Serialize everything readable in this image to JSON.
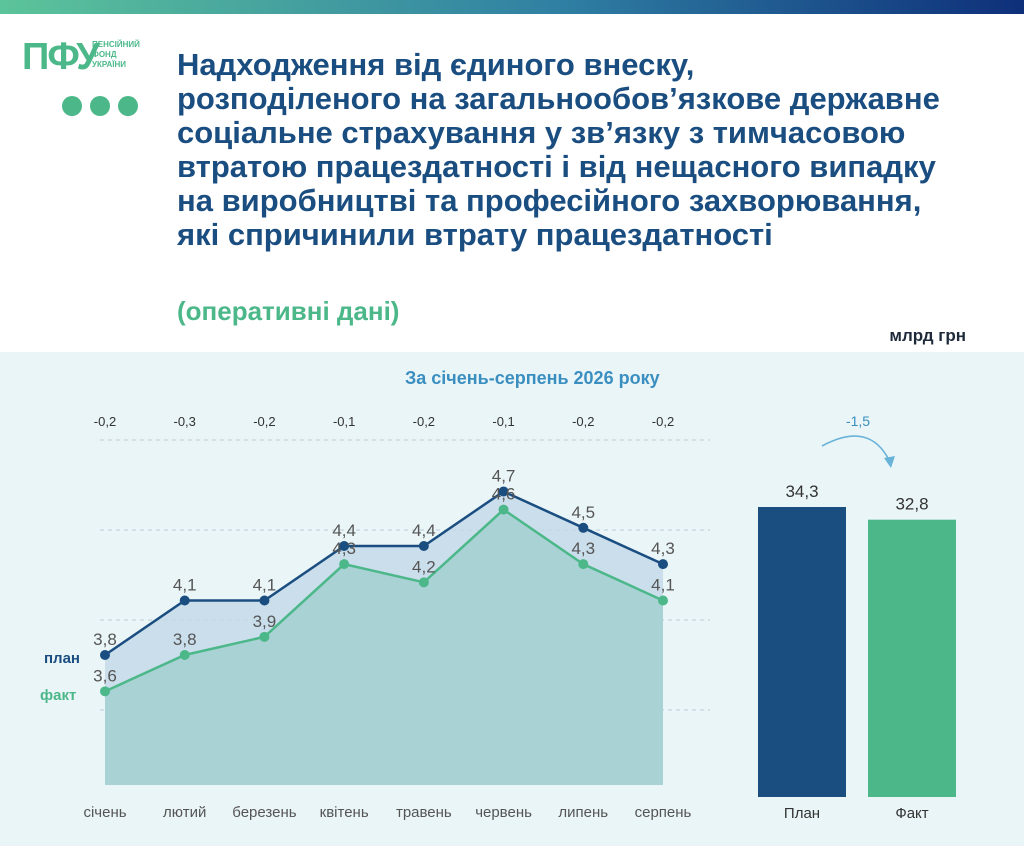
{
  "logo": {
    "mark": "ПФУ",
    "lines": [
      "ПЕНСІЙНИЙ",
      "ФОНД",
      "УКРАЇНИ"
    ]
  },
  "title_lines": [
    "Надходження від єдиного внеску,",
    "розподіленого на загальнообов’язкове державне",
    "соціальне страхування у зв’язку з тимчасовою",
    "втратою працездатності і від нещасного випадку",
    "на виробництві та професійного захворювання,",
    "які спричинили втрату працездатності"
  ],
  "subtitle": "(оперативні дані)",
  "unit": "млрд грн",
  "colors": {
    "plan": "#1a4d80",
    "fact": "#4cb88a",
    "title": "#1a4d80",
    "accent": "#3a8fc0"
  },
  "chart_data": [
    {
      "type": "area",
      "title": "За січень-серпень 2026 року",
      "categories": [
        "січень",
        "лютий",
        "березень",
        "квітень",
        "травень",
        "червень",
        "липень",
        "серпень"
      ],
      "series": [
        {
          "name": "план",
          "values": [
            3.8,
            4.1,
            4.1,
            4.4,
            4.4,
            4.7,
            4.5,
            4.3
          ],
          "labels": [
            "3,8",
            "4,1",
            "4,1",
            "4,4",
            "4,4",
            "4,7",
            "4,5",
            "4,3"
          ]
        },
        {
          "name": "факт",
          "values": [
            3.6,
            3.8,
            3.9,
            4.3,
            4.2,
            4.6,
            4.3,
            4.1
          ],
          "labels": [
            "3,6",
            "3,8",
            "3,9",
            "4,3",
            "4,2",
            "4,6",
            "4,3",
            "4,1"
          ]
        }
      ],
      "differences": [
        "-0,2",
        "-0,3",
        "-0,2",
        "-0,1",
        "-0,2",
        "-0,1",
        "-0,2",
        "-0,2"
      ],
      "ylim": [
        3.0,
        5.0
      ],
      "grid": true
    },
    {
      "type": "bar",
      "categories": [
        "План",
        "Факт"
      ],
      "values": [
        34.3,
        32.8
      ],
      "labels": [
        "34,3",
        "32,8"
      ],
      "difference": "-1,5"
    }
  ]
}
